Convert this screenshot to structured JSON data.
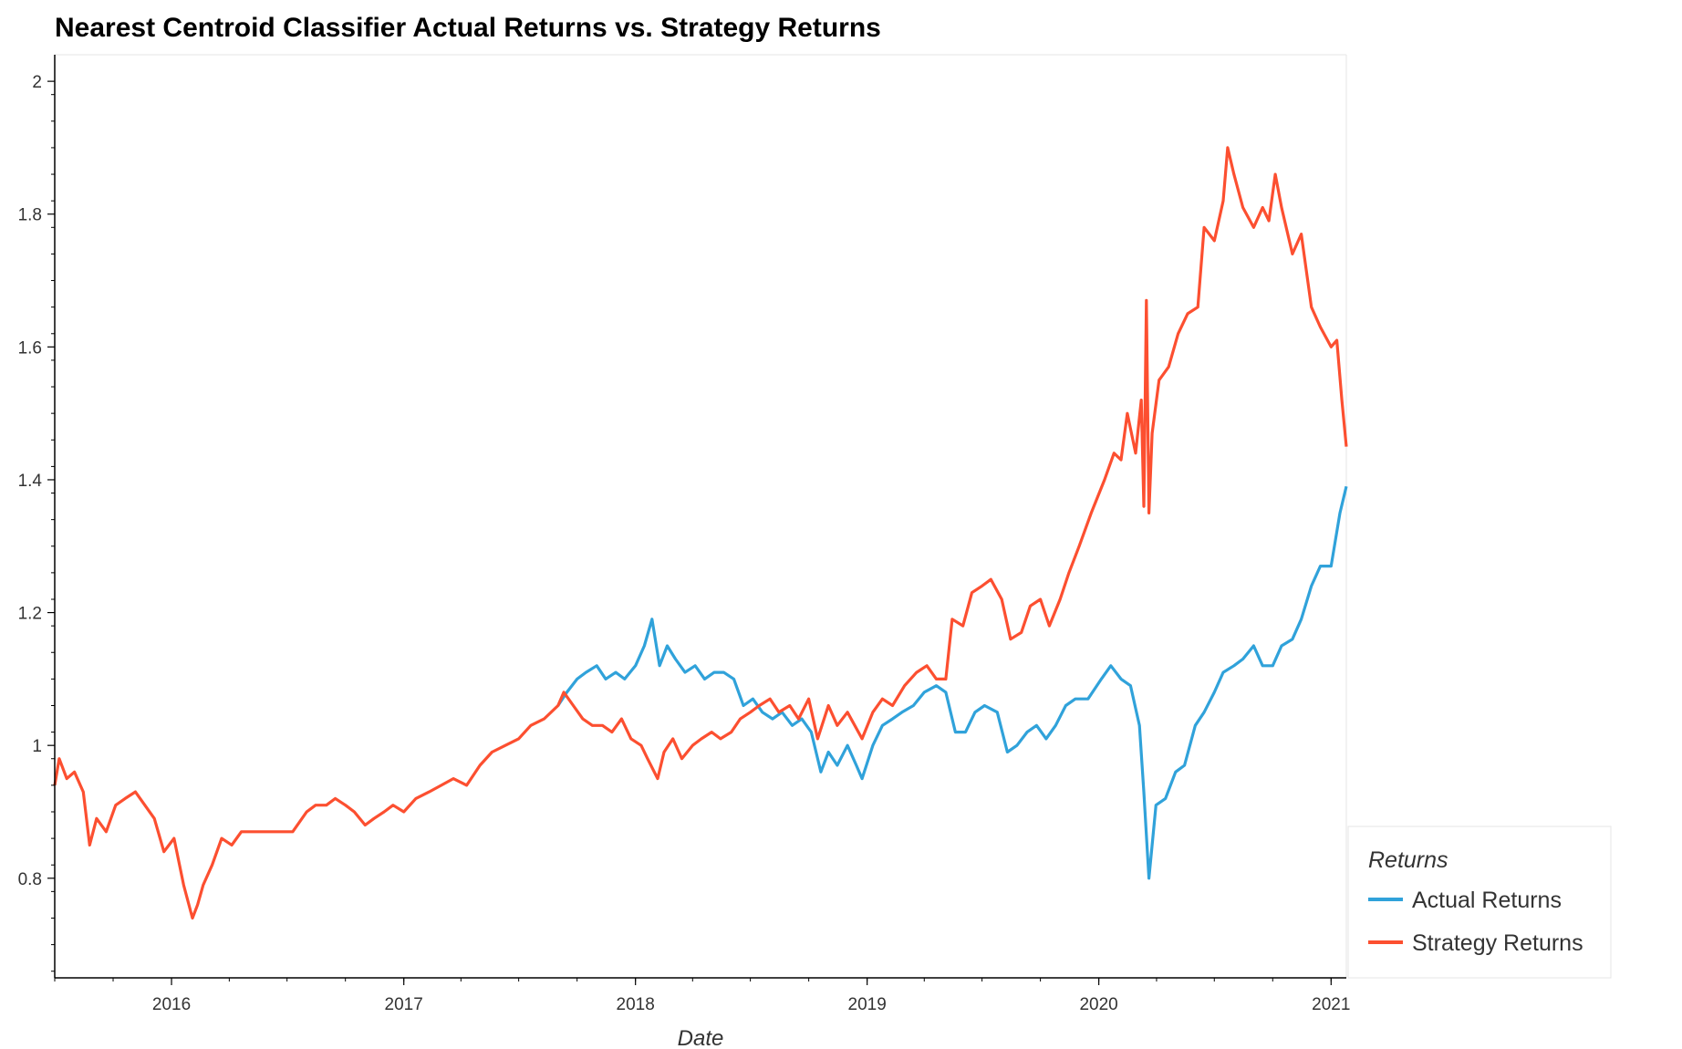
{
  "chart_data": {
    "type": "line",
    "title": "Nearest Centroid Classifier Actual Returns vs. Strategy Returns",
    "xlabel": "Date",
    "ylabel": "",
    "x_tick_labels": [
      "2016",
      "2017",
      "2018",
      "2019",
      "2020",
      "2021"
    ],
    "y_tick_labels": [
      "0.8",
      "1",
      "1.2",
      "1.4",
      "1.6",
      "1.8",
      "2"
    ],
    "xlim": [
      "2015-07-01",
      "2021-01-25"
    ],
    "ylim": [
      0.65,
      2.04
    ],
    "grid": false,
    "legend": {
      "title": "Returns",
      "position": "bottom-right, outside plot"
    },
    "series": [
      {
        "name": "Actual Returns",
        "color": "#30a2da",
        "points": [
          [
            "2017-09-01",
            1.06
          ],
          [
            "2017-09-15",
            1.08
          ],
          [
            "2017-10-01",
            1.1
          ],
          [
            "2017-10-15",
            1.11
          ],
          [
            "2017-11-01",
            1.12
          ],
          [
            "2017-11-15",
            1.1
          ],
          [
            "2017-12-01",
            1.11
          ],
          [
            "2017-12-15",
            1.1
          ],
          [
            "2018-01-01",
            1.12
          ],
          [
            "2018-01-15",
            1.15
          ],
          [
            "2018-01-27",
            1.19
          ],
          [
            "2018-02-08",
            1.12
          ],
          [
            "2018-02-20",
            1.15
          ],
          [
            "2018-03-05",
            1.13
          ],
          [
            "2018-03-20",
            1.11
          ],
          [
            "2018-04-05",
            1.12
          ],
          [
            "2018-04-20",
            1.1
          ],
          [
            "2018-05-05",
            1.11
          ],
          [
            "2018-05-20",
            1.11
          ],
          [
            "2018-06-05",
            1.1
          ],
          [
            "2018-06-20",
            1.06
          ],
          [
            "2018-07-05",
            1.07
          ],
          [
            "2018-07-20",
            1.05
          ],
          [
            "2018-08-05",
            1.04
          ],
          [
            "2018-08-20",
            1.05
          ],
          [
            "2018-09-05",
            1.03
          ],
          [
            "2018-09-20",
            1.04
          ],
          [
            "2018-10-05",
            1.02
          ],
          [
            "2018-10-20",
            0.96
          ],
          [
            "2018-11-01",
            0.99
          ],
          [
            "2018-11-15",
            0.97
          ],
          [
            "2018-12-01",
            1.0
          ],
          [
            "2018-12-15",
            0.97
          ],
          [
            "2018-12-24",
            0.95
          ],
          [
            "2019-01-10",
            1.0
          ],
          [
            "2019-01-25",
            1.03
          ],
          [
            "2019-02-10",
            1.04
          ],
          [
            "2019-02-25",
            1.05
          ],
          [
            "2019-03-15",
            1.06
          ],
          [
            "2019-04-01",
            1.08
          ],
          [
            "2019-04-20",
            1.09
          ],
          [
            "2019-05-05",
            1.08
          ],
          [
            "2019-05-20",
            1.02
          ],
          [
            "2019-06-05",
            1.02
          ],
          [
            "2019-06-20",
            1.05
          ],
          [
            "2019-07-05",
            1.06
          ],
          [
            "2019-07-25",
            1.05
          ],
          [
            "2019-08-10",
            0.99
          ],
          [
            "2019-08-25",
            1.0
          ],
          [
            "2019-09-10",
            1.02
          ],
          [
            "2019-09-25",
            1.03
          ],
          [
            "2019-10-10",
            1.01
          ],
          [
            "2019-10-25",
            1.03
          ],
          [
            "2019-11-10",
            1.06
          ],
          [
            "2019-11-25",
            1.07
          ],
          [
            "2019-12-15",
            1.07
          ],
          [
            "2020-01-05",
            1.1
          ],
          [
            "2020-01-20",
            1.12
          ],
          [
            "2020-02-05",
            1.1
          ],
          [
            "2020-02-20",
            1.09
          ],
          [
            "2020-03-05",
            1.03
          ],
          [
            "2020-03-12",
            0.93
          ],
          [
            "2020-03-20",
            0.8
          ],
          [
            "2020-03-31",
            0.91
          ],
          [
            "2020-04-15",
            0.92
          ],
          [
            "2020-05-01",
            0.96
          ],
          [
            "2020-05-15",
            0.97
          ],
          [
            "2020-06-01",
            1.03
          ],
          [
            "2020-06-15",
            1.05
          ],
          [
            "2020-07-01",
            1.08
          ],
          [
            "2020-07-15",
            1.11
          ],
          [
            "2020-08-01",
            1.12
          ],
          [
            "2020-08-15",
            1.13
          ],
          [
            "2020-09-01",
            1.15
          ],
          [
            "2020-09-15",
            1.12
          ],
          [
            "2020-10-01",
            1.12
          ],
          [
            "2020-10-15",
            1.15
          ],
          [
            "2020-11-01",
            1.16
          ],
          [
            "2020-11-15",
            1.19
          ],
          [
            "2020-12-01",
            1.24
          ],
          [
            "2020-12-15",
            1.27
          ],
          [
            "2021-01-01",
            1.27
          ],
          [
            "2021-01-15",
            1.35
          ],
          [
            "2021-01-25",
            1.39
          ]
        ]
      },
      {
        "name": "Strategy Returns",
        "color": "#fc4f30",
        "points": [
          [
            "2015-07-01",
            0.94
          ],
          [
            "2015-07-08",
            0.98
          ],
          [
            "2015-07-20",
            0.95
          ],
          [
            "2015-08-01",
            0.96
          ],
          [
            "2015-08-15",
            0.93
          ],
          [
            "2015-08-25",
            0.85
          ],
          [
            "2015-09-05",
            0.89
          ],
          [
            "2015-09-20",
            0.87
          ],
          [
            "2015-10-05",
            0.91
          ],
          [
            "2015-10-20",
            0.92
          ],
          [
            "2015-11-05",
            0.93
          ],
          [
            "2015-11-20",
            0.91
          ],
          [
            "2015-12-05",
            0.89
          ],
          [
            "2015-12-20",
            0.84
          ],
          [
            "2016-01-05",
            0.86
          ],
          [
            "2016-01-20",
            0.79
          ],
          [
            "2016-02-03",
            0.74
          ],
          [
            "2016-02-11",
            0.76
          ],
          [
            "2016-02-20",
            0.79
          ],
          [
            "2016-03-05",
            0.82
          ],
          [
            "2016-03-20",
            0.86
          ],
          [
            "2016-04-05",
            0.85
          ],
          [
            "2016-04-20",
            0.87
          ],
          [
            "2016-07-10",
            0.87
          ],
          [
            "2016-08-01",
            0.9
          ],
          [
            "2016-08-15",
            0.91
          ],
          [
            "2016-09-01",
            0.91
          ],
          [
            "2016-09-15",
            0.92
          ],
          [
            "2016-10-01",
            0.91
          ],
          [
            "2016-10-15",
            0.9
          ],
          [
            "2016-11-01",
            0.88
          ],
          [
            "2016-11-15",
            0.89
          ],
          [
            "2016-12-01",
            0.9
          ],
          [
            "2016-12-15",
            0.91
          ],
          [
            "2017-01-01",
            0.9
          ],
          [
            "2017-01-20",
            0.92
          ],
          [
            "2017-02-10",
            0.93
          ],
          [
            "2017-03-01",
            0.94
          ],
          [
            "2017-03-20",
            0.95
          ],
          [
            "2017-04-10",
            0.94
          ],
          [
            "2017-05-01",
            0.97
          ],
          [
            "2017-05-20",
            0.99
          ],
          [
            "2017-06-10",
            1.0
          ],
          [
            "2017-07-01",
            1.01
          ],
          [
            "2017-07-20",
            1.03
          ],
          [
            "2017-08-10",
            1.04
          ],
          [
            "2017-09-01",
            1.06
          ],
          [
            "2017-09-10",
            1.08
          ],
          [
            "2017-09-25",
            1.06
          ],
          [
            "2017-10-10",
            1.04
          ],
          [
            "2017-10-25",
            1.03
          ],
          [
            "2017-11-10",
            1.03
          ],
          [
            "2017-11-25",
            1.02
          ],
          [
            "2017-12-10",
            1.04
          ],
          [
            "2017-12-25",
            1.01
          ],
          [
            "2018-01-10",
            1.0
          ],
          [
            "2018-01-20",
            0.98
          ],
          [
            "2018-02-05",
            0.95
          ],
          [
            "2018-02-15",
            0.99
          ],
          [
            "2018-03-01",
            1.01
          ],
          [
            "2018-03-15",
            0.98
          ],
          [
            "2018-04-01",
            1.0
          ],
          [
            "2018-04-15",
            1.01
          ],
          [
            "2018-05-01",
            1.02
          ],
          [
            "2018-05-15",
            1.01
          ],
          [
            "2018-06-01",
            1.02
          ],
          [
            "2018-06-15",
            1.04
          ],
          [
            "2018-07-01",
            1.05
          ],
          [
            "2018-07-15",
            1.06
          ],
          [
            "2018-08-01",
            1.07
          ],
          [
            "2018-08-15",
            1.05
          ],
          [
            "2018-09-01",
            1.06
          ],
          [
            "2018-09-15",
            1.04
          ],
          [
            "2018-10-01",
            1.07
          ],
          [
            "2018-10-15",
            1.01
          ],
          [
            "2018-11-01",
            1.06
          ],
          [
            "2018-11-15",
            1.03
          ],
          [
            "2018-12-01",
            1.05
          ],
          [
            "2018-12-24",
            1.01
          ],
          [
            "2019-01-10",
            1.05
          ],
          [
            "2019-01-25",
            1.07
          ],
          [
            "2019-02-10",
            1.06
          ],
          [
            "2019-03-01",
            1.09
          ],
          [
            "2019-03-20",
            1.11
          ],
          [
            "2019-04-05",
            1.12
          ],
          [
            "2019-04-20",
            1.1
          ],
          [
            "2019-05-05",
            1.1
          ],
          [
            "2019-05-15",
            1.19
          ],
          [
            "2019-06-01",
            1.18
          ],
          [
            "2019-06-15",
            1.23
          ],
          [
            "2019-07-01",
            1.24
          ],
          [
            "2019-07-15",
            1.25
          ],
          [
            "2019-08-01",
            1.22
          ],
          [
            "2019-08-15",
            1.16
          ],
          [
            "2019-09-01",
            1.17
          ],
          [
            "2019-09-15",
            1.21
          ],
          [
            "2019-10-01",
            1.22
          ],
          [
            "2019-10-15",
            1.18
          ],
          [
            "2019-11-01",
            1.22
          ],
          [
            "2019-11-15",
            1.26
          ],
          [
            "2019-12-01",
            1.3
          ],
          [
            "2019-12-20",
            1.35
          ],
          [
            "2020-01-10",
            1.4
          ],
          [
            "2020-01-25",
            1.44
          ],
          [
            "2020-02-05",
            1.43
          ],
          [
            "2020-02-15",
            1.5
          ],
          [
            "2020-02-28",
            1.44
          ],
          [
            "2020-03-08",
            1.52
          ],
          [
            "2020-03-12",
            1.36
          ],
          [
            "2020-03-16",
            1.67
          ],
          [
            "2020-03-20",
            1.35
          ],
          [
            "2020-03-25",
            1.47
          ],
          [
            "2020-04-05",
            1.55
          ],
          [
            "2020-04-20",
            1.57
          ],
          [
            "2020-05-05",
            1.62
          ],
          [
            "2020-05-20",
            1.65
          ],
          [
            "2020-06-05",
            1.66
          ],
          [
            "2020-06-15",
            1.78
          ],
          [
            "2020-07-01",
            1.76
          ],
          [
            "2020-07-15",
            1.82
          ],
          [
            "2020-07-22",
            1.9
          ],
          [
            "2020-08-01",
            1.86
          ],
          [
            "2020-08-15",
            1.81
          ],
          [
            "2020-09-01",
            1.78
          ],
          [
            "2020-09-15",
            1.81
          ],
          [
            "2020-09-25",
            1.79
          ],
          [
            "2020-10-05",
            1.86
          ],
          [
            "2020-10-15",
            1.81
          ],
          [
            "2020-11-01",
            1.74
          ],
          [
            "2020-11-15",
            1.77
          ],
          [
            "2020-12-01",
            1.66
          ],
          [
            "2020-12-15",
            1.63
          ],
          [
            "2021-01-01",
            1.6
          ],
          [
            "2021-01-10",
            1.61
          ],
          [
            "2021-01-18",
            1.52
          ],
          [
            "2021-01-25",
            1.45
          ]
        ]
      }
    ]
  }
}
